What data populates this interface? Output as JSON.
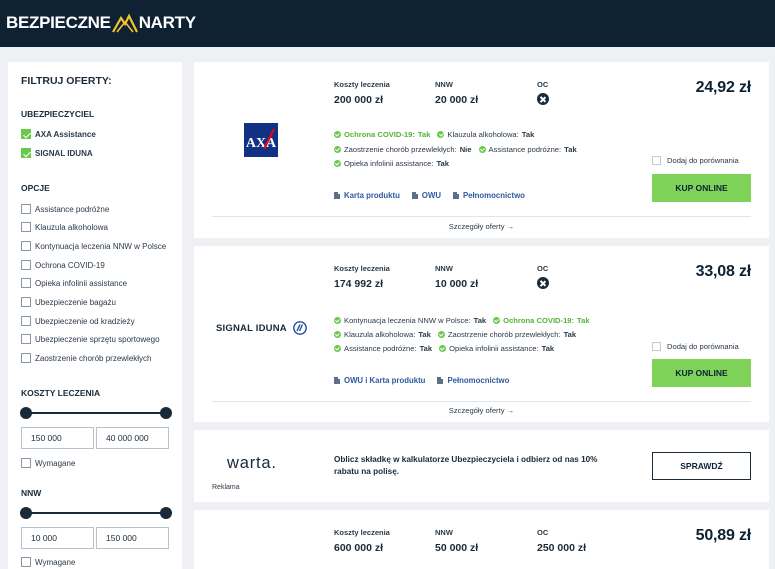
{
  "header": {
    "logo_left": "BEZPIECZNE",
    "logo_right": "NARTY"
  },
  "sidebar": {
    "title": "FILTRUJ OFERTY:",
    "insurers_heading": "UBEZPIECZYCIEL",
    "insurers": [
      {
        "label": "AXA Assistance",
        "checked": true
      },
      {
        "label": "SIGNAL IDUNA",
        "checked": true
      }
    ],
    "options_heading": "OPCJE",
    "options": [
      {
        "label": "Assistance podróżne",
        "checked": false
      },
      {
        "label": "Klauzula alkoholowa",
        "checked": false
      },
      {
        "label": "Kontynuacja leczenia NNW w Polsce",
        "checked": false
      },
      {
        "label": "Ochrona COVID-19",
        "checked": false
      },
      {
        "label": "Opieka infolinii assistance",
        "checked": false
      },
      {
        "label": "Ubezpieczenie bagażu",
        "checked": false
      },
      {
        "label": "Ubezpieczenie od kradzieży",
        "checked": false
      },
      {
        "label": "Ubezpieczenie sprzętu sportowego",
        "checked": false
      },
      {
        "label": "Zaostrzenie chorób przewlekłych",
        "checked": false
      }
    ],
    "treatment_heading": "KOSZTY LECZENIA",
    "treatment_min": "150 000",
    "treatment_max": "40 000 000",
    "treatment_required": "Wymagane",
    "nnw_heading": "NNW",
    "nnw_min": "10 000",
    "nnw_max": "150 000",
    "nnw_required": "Wymagane"
  },
  "labels": {
    "treatment": "Koszty leczenia",
    "nnw": "NNW",
    "oc": "OC",
    "compare": "Dodaj do porównania",
    "buy": "KUP ONLINE",
    "details": "Szczegóły oferty →"
  },
  "offers": [
    {
      "insurer": "AXA",
      "treatment": "200 000 zł",
      "nnw": "20 000 zł",
      "price": "24,92 zł",
      "features": [
        [
          {
            "label": "Ochrona COVID-19:",
            "value": "Tak",
            "covid": true
          },
          {
            "label": "Klauzula alkoholowa:",
            "value": "Tak"
          }
        ],
        [
          {
            "label": "Zaostrzenie chorób przewlekłych:",
            "value": "Nie"
          },
          {
            "label": "Assistance podróżne:",
            "value": "Tak"
          }
        ],
        [
          {
            "label": "Opieka infolinii assistance:",
            "value": "Tak"
          }
        ]
      ],
      "docs": [
        "Karta produktu",
        "OWU",
        "Pełnomocnictwo"
      ]
    },
    {
      "insurer": "SIGNAL IDUNA",
      "treatment": "174 992 zł",
      "nnw": "10 000 zł",
      "price": "33,08 zł",
      "features": [
        [
          {
            "label": "Kontynuacja leczenia NNW w Polsce:",
            "value": "Tak"
          },
          {
            "label": "Ochrona COVID-19:",
            "value": "Tak",
            "covid": true
          }
        ],
        [
          {
            "label": "Klauzula alkoholowa:",
            "value": "Tak"
          },
          {
            "label": "Zaostrzenie chorób przewlekłych:",
            "value": "Tak"
          }
        ],
        [
          {
            "label": "Assistance podróżne:",
            "value": "Tak"
          },
          {
            "label": "Opieka infolinii assistance:",
            "value": "Tak"
          }
        ]
      ],
      "docs": [
        "OWU i Karta produktu",
        "Pełnomocnictwo"
      ]
    }
  ],
  "ad": {
    "logo": "warta.",
    "text": "Oblicz składkę w kalkulatorze Ubezpieczyciela i odbierz od nas 10% rabatu na polisę.",
    "button": "SPRAWDŹ",
    "label": "Reklama"
  },
  "offer3": {
    "treatment": "600 000 zł",
    "nnw": "50 000 zł",
    "oc": "250 000 zł",
    "price": "50,89 zł"
  },
  "colors": {
    "header": "#0f2233",
    "accent_green": "#7dd257",
    "covid_green": "#55b336",
    "axa_blue": "#103184",
    "axa_red": "#e30613",
    "warta_red": "#d9262d"
  }
}
